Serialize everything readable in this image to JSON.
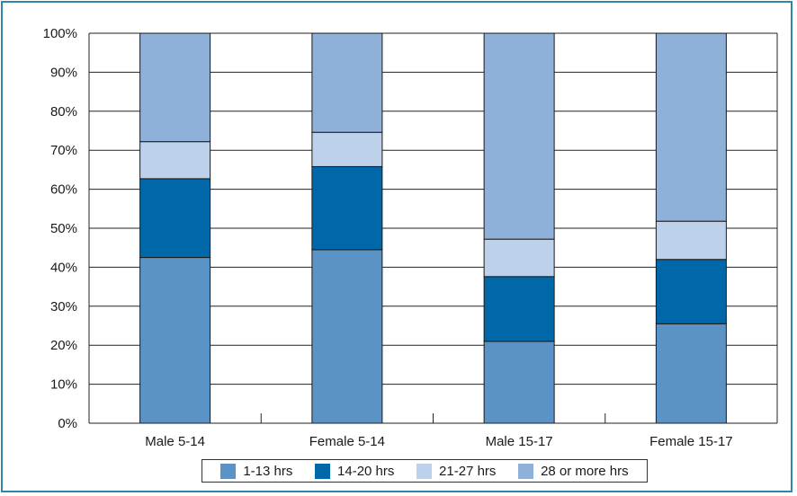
{
  "chart_data": {
    "type": "bar",
    "stacked": true,
    "categories": [
      "Male 5-14",
      "Female 5-14",
      "Male 15-17",
      "Female 15-17"
    ],
    "series": [
      {
        "name": "1-13 hrs",
        "values": [
          42.5,
          44.5,
          21,
          25.5
        ],
        "color": "#5b93c7"
      },
      {
        "name": "14-20 hrs",
        "values": [
          20.2,
          21.3,
          16.6,
          16.5
        ],
        "color": "#0068a8"
      },
      {
        "name": "21-27 hrs",
        "values": [
          9.5,
          8.8,
          9.6,
          9.8
        ],
        "color": "#bdd1ea"
      },
      {
        "name": "28 or more hrs",
        "values": [
          27.8,
          25.4,
          52.8,
          48.2
        ],
        "color": "#8fb0d8"
      }
    ],
    "y_ticks": [
      "0%",
      "10%",
      "20%",
      "30%",
      "40%",
      "50%",
      "60%",
      "70%",
      "80%",
      "90%",
      "100%"
    ],
    "ylim": [
      0,
      100
    ],
    "grid": true,
    "legend_position": "bottom"
  }
}
